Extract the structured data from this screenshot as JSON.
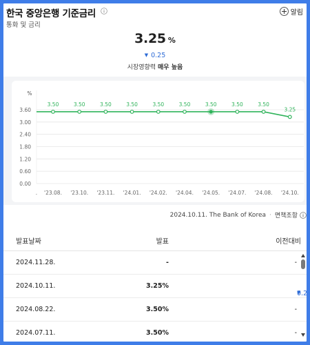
{
  "header": {
    "title": "한국 중앙은행 기준금리",
    "subtitle": "통화 및 금리",
    "alarm_label": "알림"
  },
  "summary": {
    "rate": "3.25",
    "unit": "%",
    "change": "0.25",
    "impact_label": "시장영향력",
    "impact_value": "매우 높음"
  },
  "colors": {
    "accent_blue": "#2d6bd6",
    "line_green": "#2fb35a",
    "frame_blue": "#3f7de8"
  },
  "chart_data": {
    "type": "line",
    "ylabel": "%",
    "x": [
      "'23.08.",
      "'23.10.",
      "'23.11.",
      "'24.01.",
      "'24.02.",
      "'24.04.",
      "'24.05.",
      "'24.07.",
      "'24.08.",
      "'24.10."
    ],
    "x_leading_tick": ".",
    "values": [
      3.5,
      3.5,
      3.5,
      3.5,
      3.5,
      3.5,
      3.5,
      3.5,
      3.5,
      3.25
    ],
    "data_labels": [
      "3.50",
      "3.50",
      "3.50",
      "3.50",
      "3.50",
      "3.50",
      "3.50",
      "3.50",
      "3.50",
      "3.25"
    ],
    "y_ticks": [
      "3.60",
      "3.00",
      "2.40",
      "1.80",
      "1.20",
      "0.60",
      "0.00"
    ],
    "y_tick_values": [
      3.6,
      3.0,
      2.4,
      1.8,
      1.2,
      0.6,
      0.0
    ],
    "ylim": [
      0,
      3.6
    ],
    "highlighted_index": 6,
    "grid": "horizontal"
  },
  "source": {
    "text": "2024.10.11. The Bank of Korea",
    "disclaimer": "면책조항"
  },
  "table": {
    "headers": [
      "발표날짜",
      "발표",
      "이전대비"
    ],
    "rows": [
      {
        "date": "2024.11.28.",
        "rate": "-",
        "diff": "-",
        "diff_dir": "none"
      },
      {
        "date": "2024.10.11.",
        "rate": "3.25%",
        "diff": "0.25",
        "diff_dir": "down"
      },
      {
        "date": "2024.08.22.",
        "rate": "3.50%",
        "diff": "-",
        "diff_dir": "none"
      },
      {
        "date": "2024.07.11.",
        "rate": "3.50%",
        "diff": "-",
        "diff_dir": "none"
      }
    ]
  }
}
